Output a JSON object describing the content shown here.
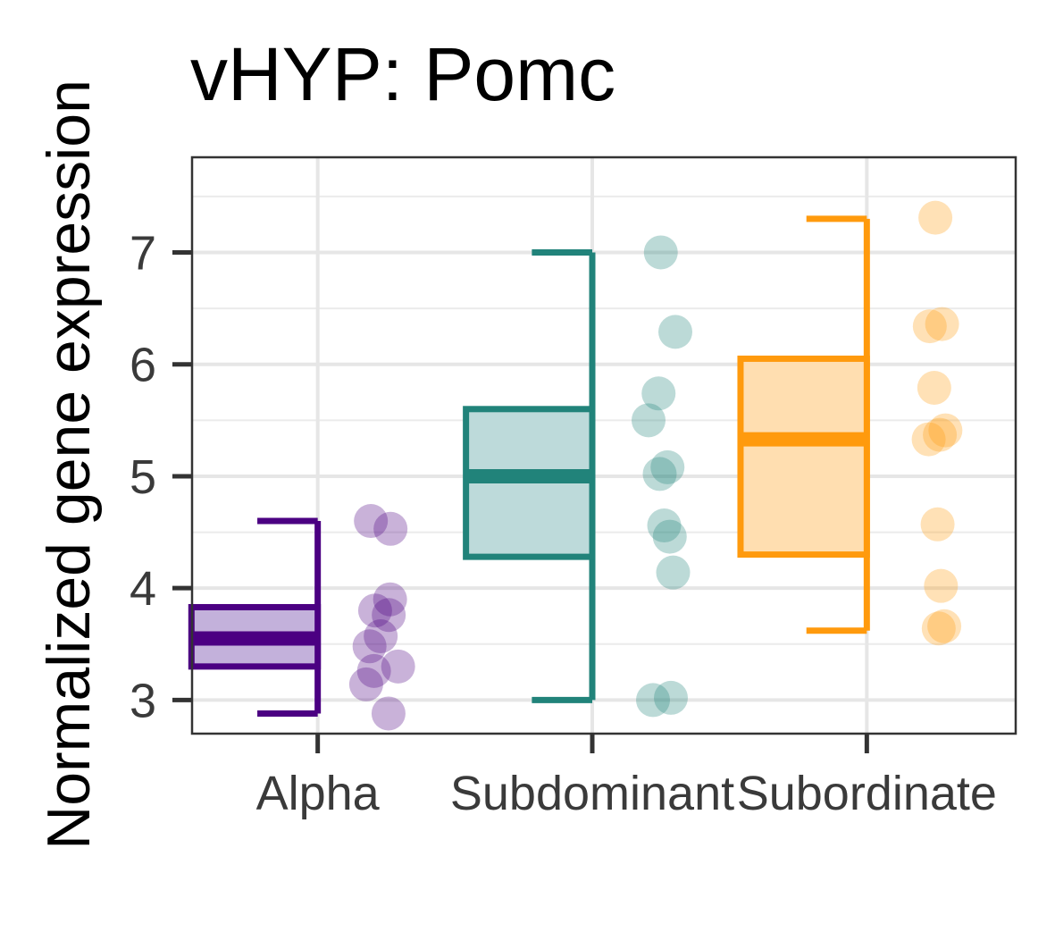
{
  "chart_data": {
    "type": "box",
    "title": "vHYP: Pomc",
    "ylabel": "Normalized gene expression",
    "xlabel": "",
    "categories": [
      "Alpha",
      "Subdominant",
      "Subordinate"
    ],
    "ylim": [
      2.7,
      7.85
    ],
    "yticks": [
      3,
      4,
      5,
      6,
      7
    ],
    "grid": true,
    "legend": "none",
    "series": [
      {
        "category": "Alpha",
        "color": "#4B0082",
        "fill": "#C3B1DB",
        "box": {
          "min": 2.88,
          "q1": 3.3,
          "median": 3.55,
          "q3": 3.83,
          "max": 4.6
        },
        "points": [
          4.6,
          4.53,
          3.9,
          3.8,
          3.76,
          3.57,
          3.48,
          3.3,
          3.26,
          3.14,
          2.88
        ]
      },
      {
        "category": "Subdominant",
        "color": "#21837A",
        "fill": "#BDDADA",
        "box": {
          "min": 3.0,
          "q1": 4.28,
          "median": 5.0,
          "q3": 5.6,
          "max": 7.0
        },
        "points": [
          7.0,
          6.29,
          5.74,
          5.5,
          5.08,
          5.02,
          4.56,
          4.46,
          4.14,
          3.02,
          3.0
        ]
      },
      {
        "category": "Subordinate",
        "color": "#FF9A0D",
        "fill": "#FFDEB0",
        "box": {
          "min": 3.62,
          "q1": 4.3,
          "median": 5.33,
          "q3": 6.05,
          "max": 7.3
        },
        "points": [
          7.31,
          6.36,
          6.34,
          5.79,
          5.41,
          5.37,
          5.33,
          4.57,
          4.02,
          3.66,
          3.64
        ]
      }
    ]
  }
}
